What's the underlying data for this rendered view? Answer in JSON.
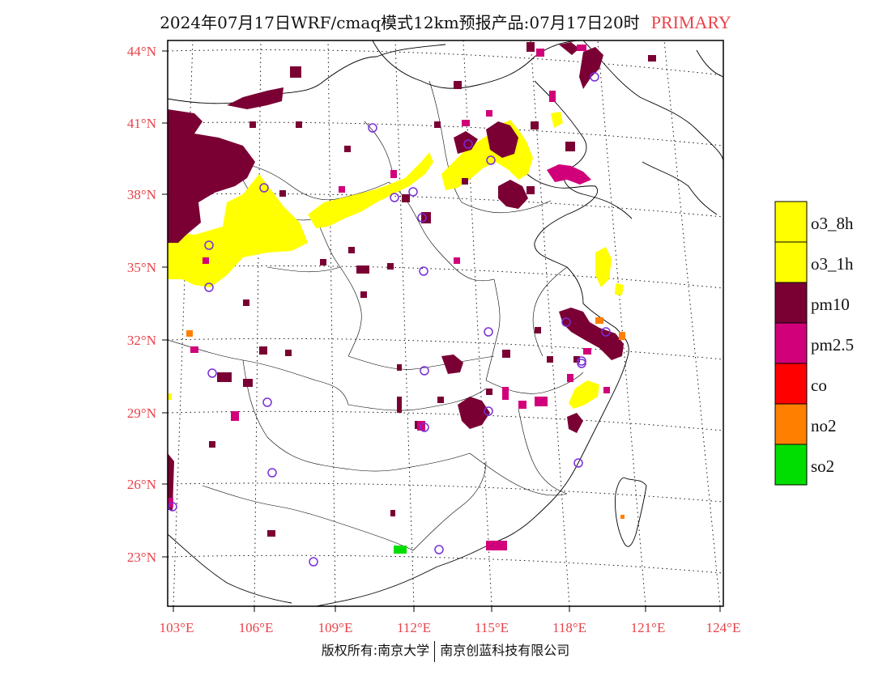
{
  "title": {
    "main": "2024年07月17日WRF/cmaq模式12km预报产品:07月17日20时",
    "mode": "PRIMARY"
  },
  "colors": {
    "label": "#e8434a",
    "mode": "#e8434a",
    "frame": "#000000",
    "station": "#7a2ed8"
  },
  "axes": {
    "lat_labels": [
      "44°N",
      "41°N",
      "38°N",
      "35°N",
      "32°N",
      "29°N",
      "26°N",
      "23°N"
    ],
    "lon_labels": [
      "103°E",
      "106°E",
      "109°E",
      "112°E",
      "115°E",
      "118°E",
      "121°E",
      "124°E"
    ]
  },
  "legend": [
    {
      "label": "o3_8h",
      "color": "#ffff00"
    },
    {
      "label": "o3_1h",
      "color": "#ffff00"
    },
    {
      "label": "pm10",
      "color": "#7a0034"
    },
    {
      "label": "pm2.5",
      "color": "#d1007a"
    },
    {
      "label": "co",
      "color": "#ff0000"
    },
    {
      "label": "no2",
      "color": "#ff8000"
    },
    {
      "label": "so2",
      "color": "#00dd00"
    }
  ],
  "footer": {
    "copyright": "版权所有:南京大学",
    "company": "南京创蓝科技有限公司"
  }
}
